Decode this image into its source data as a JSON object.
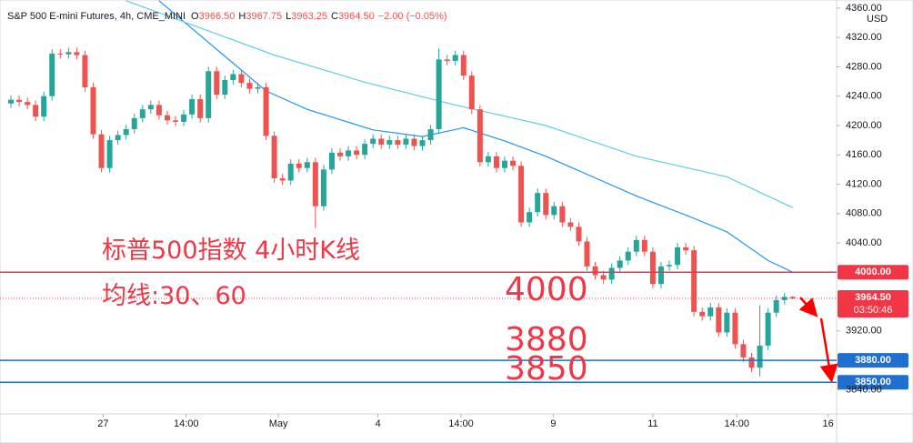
{
  "chart_data": {
    "type": "candlestick",
    "title": "S&P 500 E-mini Futures, 4h, CME_MINI",
    "ohlc_readout": [
      {
        "key": "O",
        "text": "3966.50"
      },
      {
        "key": "H",
        "text": "3967.75"
      },
      {
        "key": "L",
        "text": "3963.25"
      },
      {
        "key": "C",
        "text": "3964.50"
      }
    ],
    "change": "−2.00 (−0.05%)",
    "currency": "USD",
    "up_color": "#26a69a",
    "down_color": "#ef5350",
    "open": [
      4230,
      4235,
      4232,
      4228,
      4212,
      4240,
      4298,
      4297,
      4300,
      4296,
      4252,
      4188,
      4142,
      4180,
      4187,
      4195,
      4210,
      4222,
      4228,
      4214,
      4207,
      4205,
      4215,
      4236,
      4210,
      4274,
      4242,
      4262,
      4270,
      4258,
      4250,
      4252,
      4186,
      4128,
      4125,
      4148,
      4142,
      4150,
      4090,
      4140,
      4163,
      4158,
      4166,
      4160,
      4175,
      4182,
      4174,
      4180,
      4174,
      4182,
      4172,
      4180,
      4195,
      4290,
      4288,
      4296,
      4268,
      4222,
      4150,
      4158,
      4142,
      4152,
      4145,
      4068,
      4082,
      4108,
      4078,
      4090,
      4068,
      4062,
      4042,
      4008,
      3996,
      3990,
      4006,
      4016,
      4028,
      4044,
      4028,
      3984,
      4008,
      4010,
      4034,
      4030,
      3946,
      3940,
      3952,
      3918,
      3945,
      3902,
      3884,
      3870,
      3900,
      3945,
      3962,
      3966.5
    ],
    "high": [
      4241,
      4241,
      4238,
      4234,
      4246,
      4304,
      4304,
      4306,
      4306,
      4302,
      4258,
      4194,
      4186,
      4193,
      4201,
      4216,
      4228,
      4234,
      4234,
      4220,
      4213,
      4221,
      4242,
      4242,
      4280,
      4280,
      4268,
      4276,
      4276,
      4264,
      4258,
      4258,
      4192,
      4134,
      4154,
      4154,
      4156,
      4156,
      4146,
      4169,
      4169,
      4172,
      4172,
      4181,
      4188,
      4188,
      4186,
      4186,
      4188,
      4188,
      4186,
      4201,
      4305,
      4296,
      4302,
      4302,
      4274,
      4228,
      4164,
      4164,
      4158,
      4158,
      4151,
      4088,
      4114,
      4114,
      4096,
      4096,
      4074,
      4068,
      4048,
      4014,
      4002,
      4012,
      4022,
      4034,
      4050,
      4050,
      4034,
      4014,
      4016,
      4040,
      4040,
      4036,
      3952,
      3958,
      3958,
      3951,
      3951,
      3908,
      3890,
      3955,
      3951,
      3968,
      3972,
      3967.75
    ],
    "low": [
      4224,
      4226,
      4222,
      4206,
      4206,
      4234,
      4291,
      4291,
      4290,
      4246,
      4182,
      4136,
      4136,
      4174,
      4181,
      4189,
      4204,
      4216,
      4208,
      4201,
      4199,
      4199,
      4209,
      4204,
      4204,
      4236,
      4236,
      4256,
      4252,
      4244,
      4244,
      4180,
      4122,
      4119,
      4119,
      4136,
      4136,
      4060,
      4084,
      4134,
      4152,
      4152,
      4154,
      4154,
      4169,
      4168,
      4168,
      4168,
      4168,
      4166,
      4166,
      4174,
      4189,
      4282,
      4282,
      4262,
      4216,
      4144,
      4144,
      4136,
      4136,
      4139,
      4062,
      4062,
      4076,
      4072,
      4072,
      4062,
      4056,
      4036,
      4002,
      3990,
      3984,
      3984,
      4000,
      4010,
      4022,
      4022,
      3978,
      3978,
      4002,
      4004,
      4024,
      3940,
      3934,
      3934,
      3912,
      3912,
      3896,
      3878,
      3864,
      3858,
      3894,
      3939,
      3956,
      3963.25
    ],
    "close": [
      4235,
      4232,
      4228,
      4212,
      4240,
      4298,
      4297,
      4300,
      4296,
      4252,
      4188,
      4142,
      4180,
      4187,
      4195,
      4210,
      4222,
      4228,
      4214,
      4207,
      4205,
      4215,
      4236,
      4210,
      4274,
      4242,
      4262,
      4270,
      4258,
      4250,
      4252,
      4186,
      4128,
      4125,
      4148,
      4142,
      4150,
      4090,
      4140,
      4163,
      4158,
      4166,
      4160,
      4175,
      4182,
      4174,
      4180,
      4174,
      4182,
      4172,
      4180,
      4195,
      4290,
      4288,
      4296,
      4268,
      4222,
      4150,
      4158,
      4142,
      4152,
      4145,
      4068,
      4082,
      4108,
      4078,
      4090,
      4068,
      4062,
      4042,
      4008,
      3996,
      3990,
      4006,
      4016,
      4028,
      4044,
      4028,
      3984,
      4008,
      4010,
      4034,
      4030,
      3946,
      3940,
      3952,
      3918,
      3945,
      3902,
      3884,
      3870,
      3900,
      3945,
      3962,
      3966.5,
      3964.5
    ],
    "moving_averages": [
      {
        "color": "#2196f3",
        "x": [
          18,
          31,
          36,
          44,
          50,
          55,
          60,
          65,
          76,
          82,
          87,
          92,
          95
        ],
        "values": [
          4370,
          4247,
          4222,
          4194,
          4185,
          4197,
          4179,
          4158,
          4104,
          4078,
          4055,
          4016,
          4000
        ]
      },
      {
        "color": "#5fd0dc",
        "x": [
          14,
          32,
          43,
          54,
          65,
          76,
          87,
          95
        ],
        "values": [
          4370,
          4296,
          4259,
          4228,
          4200,
          4158,
          4130,
          4088
        ]
      }
    ],
    "ylim": [
      3807,
      4371
    ],
    "yticks": [
      {
        "value": 3840,
        "label": "3840.00"
      },
      {
        "value": 3920,
        "label": "3920.00"
      },
      {
        "value": 4040,
        "label": "4040.00"
      },
      {
        "value": 4080,
        "label": "4080.00"
      },
      {
        "value": 4120,
        "label": "4120.00"
      },
      {
        "value": 4160,
        "label": "4160.00"
      },
      {
        "value": 4200,
        "label": "4200.00"
      },
      {
        "value": 4240,
        "label": "4240.00"
      },
      {
        "value": 4280,
        "label": "4280.00"
      },
      {
        "value": 4320,
        "label": "4320.00"
      },
      {
        "value": 4360,
        "label": "4360.00"
      }
    ],
    "xticks": [
      {
        "value": 11.2,
        "label": "27"
      },
      {
        "value": 21.3,
        "label": "14:00"
      },
      {
        "value": 32.5,
        "label": "May"
      },
      {
        "value": 44.6,
        "label": "4"
      },
      {
        "value": 54.7,
        "label": "14:00"
      },
      {
        "value": 65.9,
        "label": "9"
      },
      {
        "value": 78,
        "label": "11"
      },
      {
        "value": 88.2,
        "label": "14:00"
      },
      {
        "value": 99.3,
        "label": "16"
      }
    ],
    "price_lines": [
      {
        "value": 4000,
        "label": "4000.00",
        "color": "#f23645"
      },
      {
        "value": 3880,
        "label": "3880.00",
        "color": "#1e6fd0"
      },
      {
        "value": 3850,
        "label": "3850.00",
        "color": "#1e6fd0"
      }
    ],
    "current_price": {
      "value": 3964.5,
      "label": "3964.50",
      "countdown": "03:50:46",
      "color": "#f23645"
    },
    "annotations": [
      "标普500指数 4小时K线",
      "均线:30、60",
      "4000",
      "3880",
      "3850"
    ]
  }
}
